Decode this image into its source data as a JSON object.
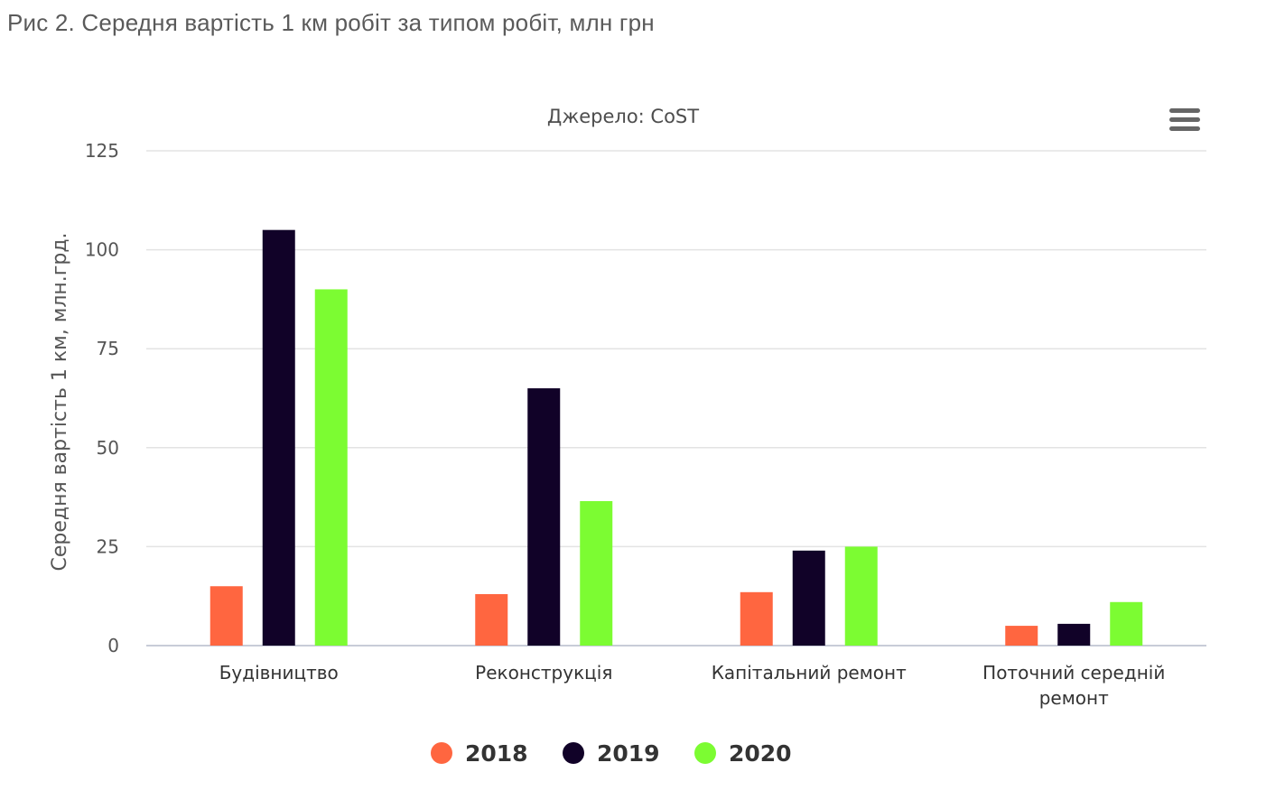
{
  "page": {
    "title": "Рис 2. Середня вартість 1 км робіт за типом робіт, млн грн"
  },
  "chart_data": {
    "type": "bar",
    "subtitle": "Джерело: CoST",
    "ylabel": "Середня вартість 1 км, млн.грд.",
    "xlabel": "",
    "ylim": [
      0,
      125
    ],
    "yticks": [
      0,
      25,
      50,
      75,
      100,
      125
    ],
    "grid": true,
    "legend_position": "bottom",
    "categories": [
      [
        "Будівництво"
      ],
      [
        "Реконструкція"
      ],
      [
        "Капітальний ремонт"
      ],
      [
        "Поточний середній",
        "ремонт"
      ]
    ],
    "series": [
      {
        "name": "2018",
        "color": "#ff6640",
        "values": [
          15,
          13,
          13.5,
          5
        ]
      },
      {
        "name": "2019",
        "color": "#110228",
        "values": [
          105,
          65,
          24,
          5.5
        ]
      },
      {
        "name": "2020",
        "color": "#7cfc32",
        "values": [
          90,
          36.5,
          25,
          11
        ]
      }
    ]
  },
  "menu": {
    "icon": "hamburger-menu-icon"
  }
}
